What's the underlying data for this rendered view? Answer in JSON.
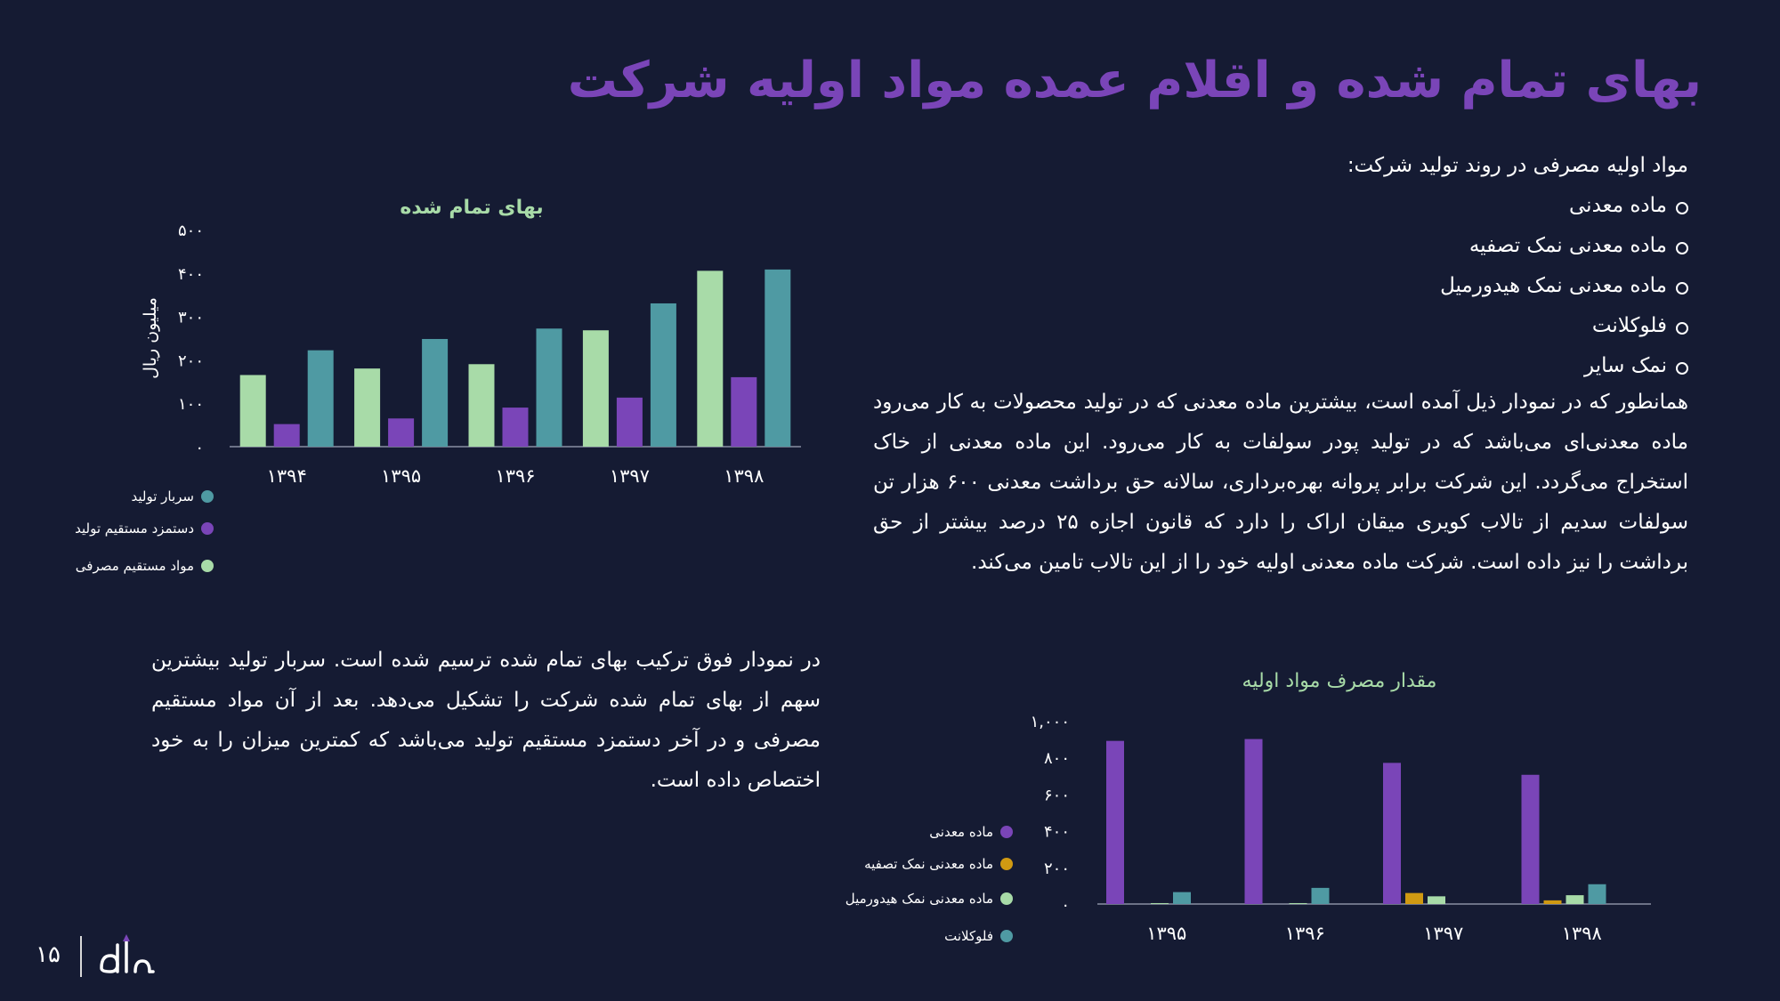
{
  "title": "بهای تمام شده و اقلام عمده مواد اولیه شرکت",
  "intro": {
    "heading": "مواد اولیه مصرفی در روند تولید شرکت:",
    "bullets": [
      "ماده معدنی",
      "ماده معدنی نمک تصفیه",
      "ماده معدنی نمک هیدورمیل",
      "فلوکلانت",
      "نمک سایر"
    ]
  },
  "paragraph_right": "همانطور که در نمودار ذیل آمده است، بیشترین ماده معدنی که در تولید محصولات به کار می‌رود ماده معدنی‌ای می‌باشد که در تولید پودر سولفات به کار می‌رود. این ماده معدنی از خاک استخراج می‌گردد. این شرکت برابر پروانه بهره‌برداری، سالانه حق برداشت معدنی ۶۰۰ هزار تن سولفات سدیم از تالاب کویری میقان اراک را دارد که قانون اجازه ۲۵ درصد بیشتر از حق برداشت را نیز داده است. شرکت ماده معدنی اولیه خود را از این تالاب تامین می‌کند.",
  "paragraph_left": "در نمودار فوق ترکیب بهای تمام شده ترسیم شده است. سربار تولید بیشترین سهم از بهای تمام شده شرکت را تشکیل می‌دهد. بعد از آن مواد مستقیم مصرفی و در آخر دستمزد مستقیم تولید می‌باشد که کمترین میزان را به خود اختصاص داده است.",
  "page_number": "۱۵",
  "logo_alt": "logo",
  "chart_data": [
    {
      "type": "bar",
      "title": "بهای تمام شده",
      "ylabel": "میلیون ریال",
      "categories": [
        "۱۳۹۴",
        "۱۳۹۵",
        "۱۳۹۶",
        "۱۳۹۷",
        "۱۳۹۸"
      ],
      "ylim": [
        0,
        500
      ],
      "yticks": [
        0,
        100,
        200,
        300,
        400,
        500
      ],
      "ytick_labels": [
        "۰",
        "۱۰۰",
        "۲۰۰",
        "۳۰۰",
        "۴۰۰",
        "۵۰۰"
      ],
      "grid": false,
      "legend_position": "bottom-left",
      "series": [
        {
          "name": "مواد مستقیم مصرفی",
          "color": "#a8dba8",
          "values": [
            165,
            180,
            190,
            268,
            405
          ]
        },
        {
          "name": "دستمزد مستقیم تولید",
          "color": "#7a45b8",
          "values": [
            52,
            65,
            90,
            113,
            160
          ]
        },
        {
          "name": "سربار تولید",
          "color": "#4f9aa3",
          "values": [
            222,
            248,
            272,
            330,
            408
          ]
        }
      ]
    },
    {
      "type": "bar",
      "title": "مقدار مصرف مواد اولیه",
      "categories": [
        "۱۳۹۵",
        "۱۳۹۶",
        "۱۳۹۷",
        "۱۳۹۸"
      ],
      "ylim": [
        0,
        1000
      ],
      "yticks": [
        0,
        200,
        400,
        600,
        800,
        1000
      ],
      "ytick_labels": [
        "۰",
        "۲۰۰",
        "۴۰۰",
        "۶۰۰",
        "۸۰۰",
        "۱,۰۰۰"
      ],
      "grid": false,
      "legend_position": "left",
      "series": [
        {
          "name": "ماده معدنی",
          "color": "#7a45b8",
          "values": [
            890,
            900,
            770,
            705
          ]
        },
        {
          "name": "ماده معدنی نمک تصفیه",
          "color": "#d09a12",
          "values": [
            0,
            0,
            60,
            20
          ]
        },
        {
          "name": "ماده معدنی نمک هیدورمیل",
          "color": "#a8dba8",
          "values": [
            5,
            5,
            42,
            48
          ]
        },
        {
          "name": "فلوکلانت",
          "color": "#4f9aa3",
          "values": [
            65,
            88,
            0,
            108
          ]
        }
      ]
    }
  ]
}
